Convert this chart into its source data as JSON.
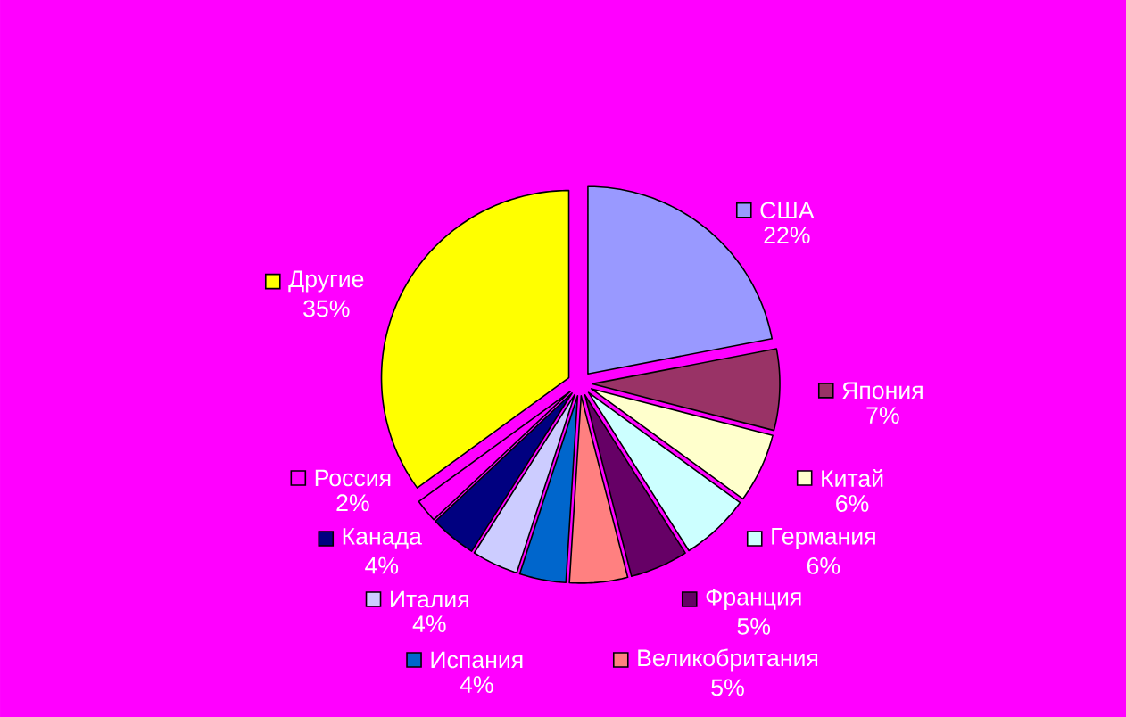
{
  "chart_data": {
    "type": "pie",
    "categories": [
      "США",
      "Япония",
      "Китай",
      "Германия",
      "Франция",
      "Великобритания",
      "Испания",
      "Италия",
      "Канада",
      "Россия",
      "Другие"
    ],
    "values": [
      22,
      7,
      6,
      6,
      5,
      5,
      4,
      4,
      4,
      2,
      35
    ],
    "value_labels": [
      "22%",
      "7%",
      "6%",
      "6%",
      "5%",
      "5%",
      "4%",
      "4%",
      "4%",
      "2%",
      "35%"
    ],
    "legend": "right",
    "colors": [
      "#9999ff",
      "#993366",
      "#ffffcc",
      "#ccffff",
      "#660066",
      "#ff8080",
      "#0066cc",
      "#ccccff",
      "#000080",
      "#ff00ff",
      "#ffff00"
    ]
  }
}
